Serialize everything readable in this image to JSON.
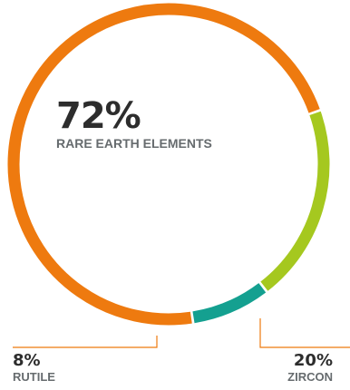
{
  "chart_data": {
    "type": "pie",
    "variant": "donut-ring",
    "slices": [
      {
        "label": "RARE EARTH ELEMENTS",
        "value": 72,
        "display": "72%",
        "color": "#ee7a0f"
      },
      {
        "label": "ZIRCON",
        "value": 20,
        "display": "20%",
        "color": "#a5c81f"
      },
      {
        "label": "RUTILE",
        "value": 8,
        "display": "8%",
        "color": "#14a090"
      }
    ],
    "leader_color": "#ee7a0f",
    "label_text_color": "#666b6e",
    "value_text_color": "#2d2d2d"
  }
}
